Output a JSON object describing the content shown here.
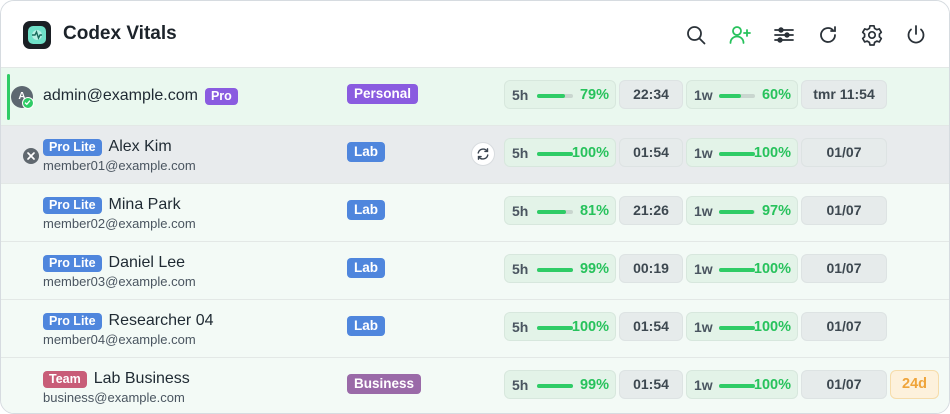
{
  "header": {
    "title": "Codex Vitals",
    "icons": [
      "search-icon",
      "add-user-icon",
      "filter-icon",
      "refresh-icon",
      "settings-icon",
      "power-icon"
    ]
  },
  "rows": [
    {
      "state": "active",
      "avatar": "A",
      "email": "admin@example.com",
      "name": "",
      "plan": "Pro",
      "group": "Personal",
      "five_hour": {
        "label": "5h",
        "percent": 79,
        "display": "79%",
        "reset": "22:34"
      },
      "one_week": {
        "label": "1w",
        "percent": 60,
        "display": "60%",
        "reset": "tmr 11:54"
      },
      "expiry": ""
    },
    {
      "state": "selected",
      "name": "Alex Kim",
      "email": "member01@example.com",
      "plan": "Pro Lite",
      "group": "Lab",
      "five_hour": {
        "label": "5h",
        "percent": 100,
        "display": "100%",
        "reset": "01:54"
      },
      "one_week": {
        "label": "1w",
        "percent": 100,
        "display": "100%",
        "reset": "01/07"
      },
      "expiry": ""
    },
    {
      "state": "normal",
      "name": "Mina Park",
      "email": "member02@example.com",
      "plan": "Pro Lite",
      "group": "Lab",
      "five_hour": {
        "label": "5h",
        "percent": 81,
        "display": "81%",
        "reset": "21:26"
      },
      "one_week": {
        "label": "1w",
        "percent": 97,
        "display": "97%",
        "reset": "01/07"
      },
      "expiry": ""
    },
    {
      "state": "normal",
      "name": "Daniel Lee",
      "email": "member03@example.com",
      "plan": "Pro Lite",
      "group": "Lab",
      "five_hour": {
        "label": "5h",
        "percent": 99,
        "display": "99%",
        "reset": "00:19"
      },
      "one_week": {
        "label": "1w",
        "percent": 100,
        "display": "100%",
        "reset": "01/07"
      },
      "expiry": ""
    },
    {
      "state": "normal",
      "name": "Researcher 04",
      "email": "member04@example.com",
      "plan": "Pro Lite",
      "group": "Lab",
      "five_hour": {
        "label": "5h",
        "percent": 100,
        "display": "100%",
        "reset": "01:54"
      },
      "one_week": {
        "label": "1w",
        "percent": 100,
        "display": "100%",
        "reset": "01/07"
      },
      "expiry": ""
    },
    {
      "state": "normal",
      "name": "Lab Business",
      "email": "business@example.com",
      "plan": "Team",
      "group": "Business",
      "five_hour": {
        "label": "5h",
        "percent": 99,
        "display": "99%",
        "reset": "01:54"
      },
      "one_week": {
        "label": "1w",
        "percent": 100,
        "display": "100%",
        "reset": "01/07"
      },
      "expiry": "24d"
    }
  ],
  "colors": {
    "accent_green": "#2fcc66",
    "plan_pro": "#8a5ce0",
    "plan_pro_lite": "#4f86dd",
    "plan_team": "#c85d78",
    "group_business": "#9a6aa8",
    "expiry_warning": "#efa43a"
  }
}
